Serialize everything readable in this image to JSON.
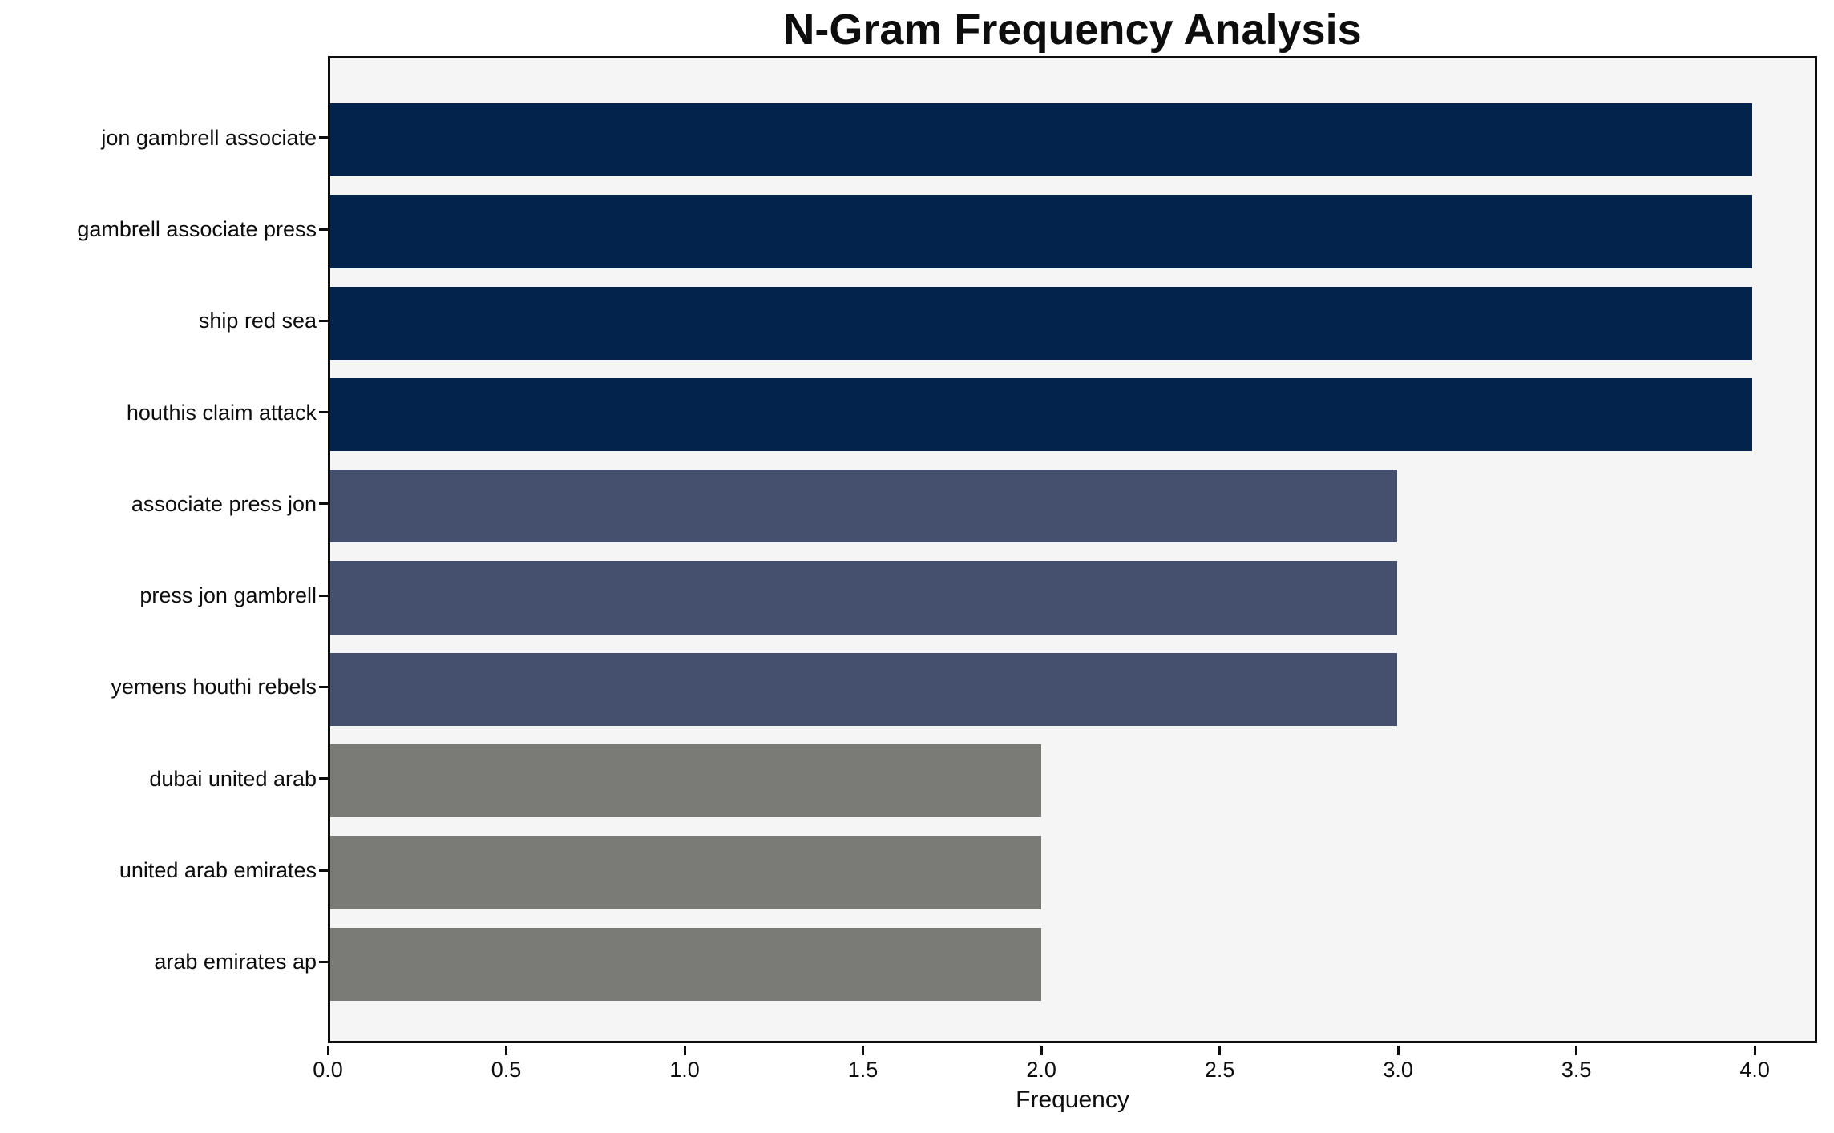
{
  "chart_data": {
    "type": "bar",
    "orientation": "horizontal",
    "title": "N-Gram Frequency Analysis",
    "xlabel": "Frequency",
    "ylabel": "",
    "categories": [
      "jon gambrell associate",
      "gambrell associate press",
      "ship red sea",
      "houthis claim attack",
      "associate press jon",
      "press jon gambrell",
      "yemens houthi rebels",
      "dubai united arab",
      "united arab emirates",
      "arab emirates ap"
    ],
    "values": [
      4,
      4,
      4,
      4,
      3,
      3,
      3,
      2,
      2,
      2
    ],
    "bar_colors": [
      "#03234c",
      "#03234c",
      "#03234c",
      "#03234c",
      "#454f6e",
      "#454f6e",
      "#454f6e",
      "#7a7a77",
      "#7a7a77",
      "#7a7a77"
    ],
    "xlim": [
      0,
      4.175
    ],
    "x_ticks": [
      0.0,
      0.5,
      1.0,
      1.5,
      2.0,
      2.5,
      3.0,
      3.5,
      4.0
    ],
    "x_tick_labels": [
      "0.0",
      "0.5",
      "1.0",
      "1.5",
      "2.0",
      "2.5",
      "3.0",
      "3.5",
      "4.0"
    ],
    "grid": false,
    "legend": null,
    "colors": {
      "freq_4": "#03234c",
      "freq_3": "#454f6e",
      "freq_2": "#7a7a77",
      "plot_background": "#f6f5f5",
      "figure_background": "#ffffff",
      "axis": "#0d0d0d"
    }
  }
}
